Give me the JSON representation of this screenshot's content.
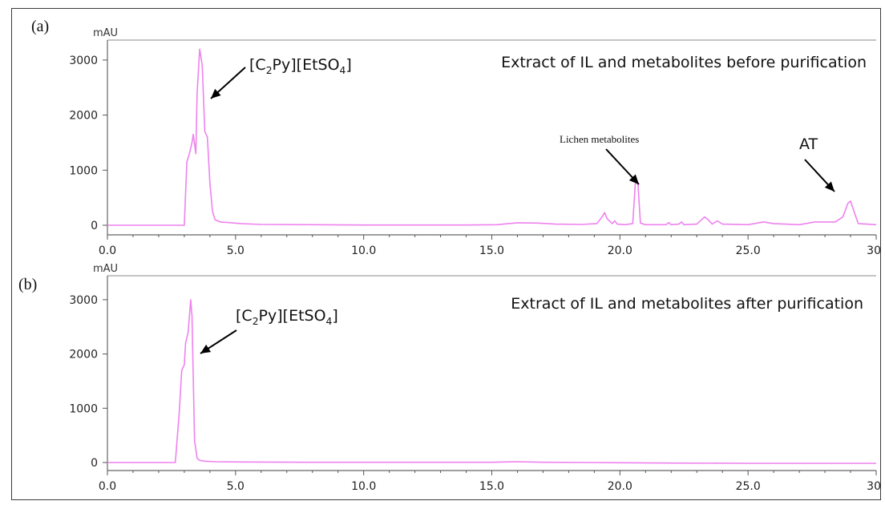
{
  "chart_data": [
    {
      "type": "line",
      "panel_label": "(a)",
      "ylabel": "mAU",
      "xlim": [
        0,
        30
      ],
      "ylim": [
        -150,
        3400
      ],
      "x_ticks": [
        "0.0",
        "5.0",
        "10.0",
        "15.0",
        "20.0",
        "25.0",
        "30"
      ],
      "y_ticks": [
        "0",
        "1000",
        "2000",
        "3000"
      ],
      "annotation_title": "Extract of IL and metabolites before purification",
      "annotations": [
        {
          "label_parts": [
            "[C",
            "2",
            "Py][EtSO",
            "4",
            "]"
          ],
          "target": [
            3.9,
            2250
          ]
        },
        {
          "label": "Lichen metabolites",
          "target": [
            20.6,
            780
          ]
        },
        {
          "label": "AT",
          "target": [
            28.5,
            620
          ]
        }
      ],
      "series": [
        {
          "color": "#ee82ee",
          "x": [
            0,
            3.0,
            3.1,
            3.2,
            3.3,
            3.35,
            3.45,
            3.5,
            3.6,
            3.7,
            3.8,
            3.9,
            4.0,
            4.1,
            4.2,
            4.4,
            4.7,
            5.2,
            6.0,
            8.0,
            10.0,
            12.0,
            14.0,
            15.2,
            16.0,
            16.8,
            17.5,
            18.5,
            19.1,
            19.3,
            19.4,
            19.5,
            19.7,
            19.8,
            19.9,
            20.2,
            20.5,
            20.6,
            20.7,
            20.8,
            21.0,
            21.8,
            21.9,
            22.0,
            22.3,
            22.4,
            22.5,
            23.0,
            23.3,
            23.45,
            23.6,
            23.8,
            24.0,
            25.0,
            25.6,
            26.0,
            27.0,
            27.6,
            28.4,
            28.7,
            28.9,
            29.0,
            29.1,
            29.3,
            30.0
          ],
          "y": [
            0,
            0,
            1150,
            1300,
            1500,
            1650,
            1300,
            2400,
            3200,
            2900,
            1700,
            1600,
            750,
            250,
            100,
            60,
            50,
            30,
            15,
            10,
            5,
            5,
            5,
            10,
            45,
            40,
            20,
            15,
            30,
            150,
            230,
            120,
            30,
            80,
            20,
            10,
            30,
            750,
            780,
            40,
            10,
            10,
            50,
            10,
            20,
            60,
            10,
            20,
            150,
            100,
            20,
            80,
            20,
            10,
            60,
            30,
            10,
            60,
            60,
            150,
            400,
            440,
            300,
            30,
            10
          ]
        }
      ]
    },
    {
      "type": "line",
      "panel_label": "(b)",
      "ylabel": "mAU",
      "xlim": [
        0,
        30
      ],
      "ylim": [
        -150,
        3400
      ],
      "x_ticks": [
        "0.0",
        "5.0",
        "10.0",
        "15.0",
        "20.0",
        "25.0",
        "30"
      ],
      "y_ticks": [
        "0",
        "1000",
        "2000",
        "3000"
      ],
      "annotation_title": "Extract of IL and metabolites after purification",
      "annotations": [
        {
          "label_parts": [
            "[C",
            "2",
            "Py][EtSO",
            "4",
            "]"
          ],
          "target": [
            3.6,
            2000
          ]
        }
      ],
      "series": [
        {
          "color": "#ee82ee",
          "x": [
            0,
            2.65,
            2.8,
            2.9,
            3.0,
            3.05,
            3.15,
            3.25,
            3.3,
            3.4,
            3.5,
            3.6,
            3.8,
            4.2,
            5.0,
            8.0,
            15.0,
            16.0,
            17.0,
            19.0,
            22.0,
            25.0,
            30.0
          ],
          "y": [
            0,
            0,
            900,
            1700,
            1800,
            2200,
            2400,
            3000,
            2700,
            400,
            80,
            40,
            25,
            15,
            10,
            5,
            5,
            15,
            5,
            0,
            -10,
            -15,
            -15
          ]
        }
      ]
    }
  ]
}
